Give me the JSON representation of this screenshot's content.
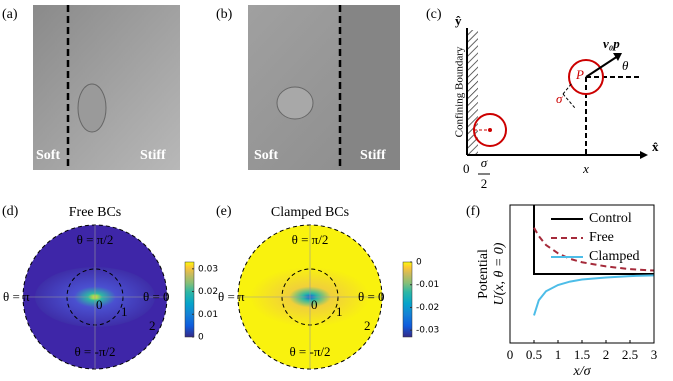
{
  "panels": {
    "a": {
      "label": "(a)",
      "left_text": "Soft",
      "right_text": "Stiff"
    },
    "b": {
      "label": "(b)",
      "left_text": "Soft",
      "right_text": "Stiff"
    },
    "c": {
      "label": "(c)",
      "y_axis": "ŷ",
      "x_axis": "x̂",
      "boundary": "Confining Boundary",
      "origin": "0",
      "half_num": "σ",
      "half_den": "2",
      "x": "x",
      "P": "P",
      "sigma": "σ",
      "velocity": "v₀p",
      "theta": "θ"
    },
    "d": {
      "label": "(d)",
      "title": "Free BCs",
      "angles": [
        "θ = π/2",
        "θ = π",
        "θ = 0",
        "θ = -π/2"
      ],
      "radii": [
        "0",
        "1",
        "2"
      ],
      "colorbar": {
        "clim": [
          0,
          0.033
        ],
        "ticks": [
          0.03,
          0.02,
          0.01,
          0
        ]
      }
    },
    "e": {
      "label": "(e)",
      "title": "Clamped BCs",
      "angles": [
        "θ = π/2",
        "θ = π",
        "θ = 0",
        "θ = -π/2"
      ],
      "radii": [
        "0",
        "1",
        "2"
      ],
      "colorbar": {
        "clim": [
          -0.033,
          0
        ],
        "ticks": [
          0,
          -0.01,
          -0.02,
          -0.03
        ]
      }
    },
    "f": {
      "label": "(f)"
    }
  },
  "chart_data": {
    "type": "line",
    "xlabel": "x/σ",
    "ylabel": "Potential",
    "ylabel_math": "U(x, θ = 0)",
    "x": [
      0.5,
      0.6,
      0.75,
      1,
      1.25,
      1.5,
      2,
      2.5,
      3
    ],
    "series": [
      {
        "name": "Control",
        "color": "#000000",
        "x": [
          0.5,
          0.5,
          3
        ],
        "values": [
          1,
          0,
          0
        ]
      },
      {
        "name": "Free",
        "color": "#a52a3a",
        "dash": true,
        "values": [
          0.67,
          0.55,
          0.42,
          0.3,
          0.22,
          0.17,
          0.11,
          0.07,
          0.05
        ]
      },
      {
        "name": "Clamped",
        "color": "#4dbde8",
        "values": [
          -0.6,
          -0.38,
          -0.25,
          -0.16,
          -0.11,
          -0.08,
          -0.05,
          -0.03,
          -0.02
        ]
      }
    ],
    "xlim": [
      0,
      3
    ],
    "ylim": [
      -1,
      1
    ],
    "xticks": [
      0,
      0.5,
      1,
      1.5,
      2,
      2.5,
      3
    ]
  }
}
